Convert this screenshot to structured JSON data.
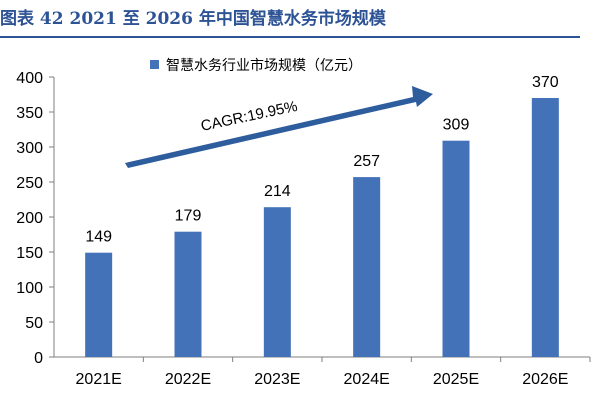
{
  "figure": {
    "title": "图表 42 2021 至 2026 年中国智慧水务市场规模"
  },
  "colors": {
    "title": "#2e5395",
    "bar": "#4472b8",
    "arrow": "#2e5d9e",
    "axis": "#7f7f7f"
  },
  "chart_data": {
    "type": "bar",
    "title": "",
    "xlabel": "",
    "ylabel": "",
    "categories": [
      "2021E",
      "2022E",
      "2023E",
      "2024E",
      "2025E",
      "2026E"
    ],
    "series": [
      {
        "name": "智慧水务行业市场规模（亿元）",
        "values": [
          149,
          179,
          214,
          257,
          309,
          370
        ]
      }
    ],
    "ylim": [
      0,
      400
    ],
    "yticks": [
      0,
      50,
      100,
      150,
      200,
      250,
      300,
      350,
      400
    ],
    "grid": false,
    "legend_position": "top-center",
    "data_labels": true,
    "annotation": {
      "text": "CAGR:19.95%",
      "shape": "upward arrow"
    }
  }
}
